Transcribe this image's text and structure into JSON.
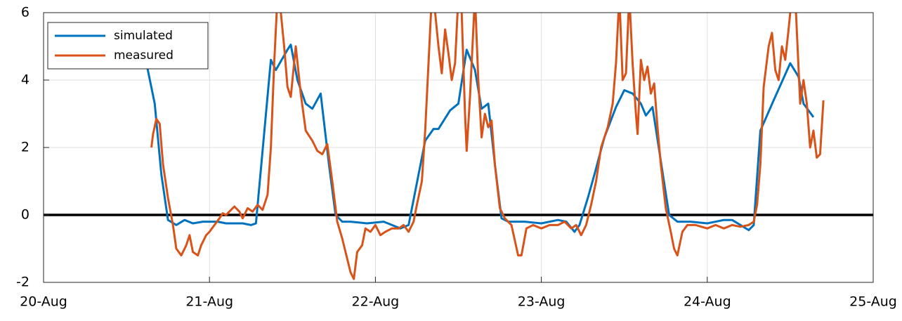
{
  "chart_data": {
    "type": "line",
    "xlim": [
      0,
      5
    ],
    "xticks": [
      {
        "value": 0,
        "label": "20-Aug"
      },
      {
        "value": 1,
        "label": "21-Aug"
      },
      {
        "value": 2,
        "label": "22-Aug"
      },
      {
        "value": 3,
        "label": "23-Aug"
      },
      {
        "value": 4,
        "label": "24-Aug"
      },
      {
        "value": 5,
        "label": "25-Aug"
      }
    ],
    "ylim": [
      -2,
      6
    ],
    "yticks": [
      -2,
      0,
      2,
      4,
      6
    ],
    "grid": true,
    "reference_line": 0,
    "legend": "upper left",
    "series": [
      {
        "name": "simulated",
        "color": "#0072bd",
        "x": [
          0.62,
          0.67,
          0.71,
          0.75,
          0.8,
          0.85,
          0.9,
          0.96,
          1.05,
          1.1,
          1.2,
          1.25,
          1.28,
          1.37,
          1.4,
          1.47,
          1.49,
          1.53,
          1.58,
          1.62,
          1.67,
          1.72,
          1.76,
          1.8,
          1.85,
          1.95,
          2.05,
          2.1,
          2.15,
          2.2,
          2.3,
          2.35,
          2.38,
          2.45,
          2.5,
          2.55,
          2.6,
          2.64,
          2.68,
          2.72,
          2.76,
          2.8,
          2.9,
          3.0,
          3.1,
          3.15,
          3.2,
          3.23,
          3.28,
          3.32,
          3.38,
          3.45,
          3.5,
          3.55,
          3.6,
          3.63,
          3.67,
          3.72,
          3.77,
          3.82,
          3.9,
          4.0,
          4.1,
          4.15,
          4.2,
          4.25,
          4.28,
          4.32,
          4.4,
          4.5,
          4.55,
          4.58,
          4.64
        ],
        "values": [
          4.5,
          3.3,
          1.2,
          -0.15,
          -0.3,
          -0.15,
          -0.25,
          -0.2,
          -0.2,
          -0.25,
          -0.25,
          -0.3,
          -0.25,
          4.6,
          4.3,
          4.9,
          5.05,
          4.0,
          3.3,
          3.15,
          3.6,
          1.5,
          0.0,
          -0.2,
          -0.2,
          -0.25,
          -0.2,
          -0.3,
          -0.4,
          -0.3,
          2.2,
          2.55,
          2.55,
          3.1,
          3.3,
          4.9,
          4.3,
          3.15,
          3.3,
          1.5,
          -0.1,
          -0.2,
          -0.2,
          -0.25,
          -0.15,
          -0.2,
          -0.5,
          -0.3,
          0.5,
          1.2,
          2.3,
          3.2,
          3.7,
          3.6,
          3.3,
          2.95,
          3.2,
          1.6,
          0.0,
          -0.2,
          -0.2,
          -0.25,
          -0.15,
          -0.15,
          -0.3,
          -0.45,
          -0.3,
          2.5,
          3.4,
          4.5,
          4.1,
          3.3,
          2.9
        ]
      },
      {
        "name": "measured",
        "color": "#d95319",
        "x": [
          0.65,
          0.66,
          0.68,
          0.7,
          0.72,
          0.75,
          0.78,
          0.8,
          0.83,
          0.86,
          0.88,
          0.9,
          0.93,
          0.95,
          0.98,
          1.0,
          1.03,
          1.06,
          1.08,
          1.1,
          1.12,
          1.15,
          1.18,
          1.2,
          1.23,
          1.26,
          1.29,
          1.32,
          1.35,
          1.37,
          1.39,
          1.41,
          1.43,
          1.45,
          1.47,
          1.49,
          1.52,
          1.55,
          1.58,
          1.62,
          1.65,
          1.68,
          1.71,
          1.74,
          1.77,
          1.8,
          1.83,
          1.85,
          1.87,
          1.89,
          1.92,
          1.94,
          1.97,
          2.0,
          2.03,
          2.06,
          2.1,
          2.14,
          2.17,
          2.2,
          2.23,
          2.25,
          2.28,
          2.3,
          2.32,
          2.34,
          2.36,
          2.38,
          2.4,
          2.42,
          2.44,
          2.46,
          2.48,
          2.5,
          2.52,
          2.54,
          2.55,
          2.57,
          2.6,
          2.62,
          2.64,
          2.66,
          2.68,
          2.7,
          2.72,
          2.75,
          2.78,
          2.82,
          2.86,
          2.88,
          2.91,
          2.95,
          3.0,
          3.05,
          3.1,
          3.14,
          3.18,
          3.21,
          3.24,
          3.27,
          3.3,
          3.33,
          3.36,
          3.4,
          3.43,
          3.45,
          3.47,
          3.49,
          3.51,
          3.53,
          3.55,
          3.57,
          3.58,
          3.6,
          3.62,
          3.64,
          3.66,
          3.68,
          3.7,
          3.72,
          3.75,
          3.78,
          3.8,
          3.82,
          3.85,
          3.88,
          3.93,
          4.0,
          4.05,
          4.1,
          4.15,
          4.2,
          4.25,
          4.28,
          4.3,
          4.32,
          4.34,
          4.37,
          4.39,
          4.41,
          4.43,
          4.45,
          4.47,
          4.49,
          4.51,
          4.53,
          4.56,
          4.58,
          4.6,
          4.62,
          4.64,
          4.66,
          4.68,
          4.7
        ],
        "values": [
          2.0,
          2.4,
          2.85,
          2.7,
          1.5,
          0.5,
          -0.3,
          -1.0,
          -1.2,
          -0.9,
          -0.6,
          -1.1,
          -1.2,
          -0.9,
          -0.6,
          -0.5,
          -0.3,
          -0.1,
          0.05,
          0,
          0.1,
          0.25,
          0.1,
          -0.1,
          0.2,
          0.1,
          0.3,
          0.15,
          0.6,
          2.0,
          4.5,
          6.5,
          6.0,
          5.0,
          3.8,
          3.5,
          5.0,
          3.6,
          2.5,
          2.2,
          1.9,
          1.8,
          2.1,
          1.0,
          -0.2,
          -0.7,
          -1.3,
          -1.7,
          -1.9,
          -1.1,
          -0.9,
          -0.4,
          -0.5,
          -0.3,
          -0.6,
          -0.5,
          -0.4,
          -0.4,
          -0.3,
          -0.5,
          -0.2,
          0.3,
          1.0,
          2.5,
          4.5,
          6.5,
          6.0,
          5.0,
          4.2,
          5.5,
          4.8,
          4.0,
          4.5,
          6.5,
          6.0,
          3.0,
          1.9,
          3.5,
          6.5,
          4.0,
          2.3,
          3.0,
          2.6,
          2.8,
          1.5,
          0.2,
          -0.1,
          -0.3,
          -1.2,
          -1.2,
          -0.4,
          -0.3,
          -0.4,
          -0.3,
          -0.3,
          -0.2,
          -0.4,
          -0.3,
          -0.6,
          -0.3,
          0.3,
          1.0,
          2.0,
          2.6,
          3.3,
          4.5,
          6.5,
          4.0,
          4.2,
          6.5,
          4.5,
          3.0,
          2.4,
          4.6,
          4.0,
          4.4,
          3.6,
          3.9,
          2.6,
          1.5,
          0.2,
          -0.5,
          -1.0,
          -1.2,
          -0.5,
          -0.3,
          -0.3,
          -0.4,
          -0.3,
          -0.4,
          -0.3,
          -0.35,
          -0.3,
          -0.2,
          0.3,
          1.5,
          3.8,
          5.0,
          5.4,
          4.3,
          4.0,
          5.0,
          4.6,
          5.5,
          6.5,
          6.5,
          3.3,
          4.0,
          3.3,
          2.0,
          2.5,
          1.7,
          1.8,
          3.4
        ]
      }
    ]
  }
}
